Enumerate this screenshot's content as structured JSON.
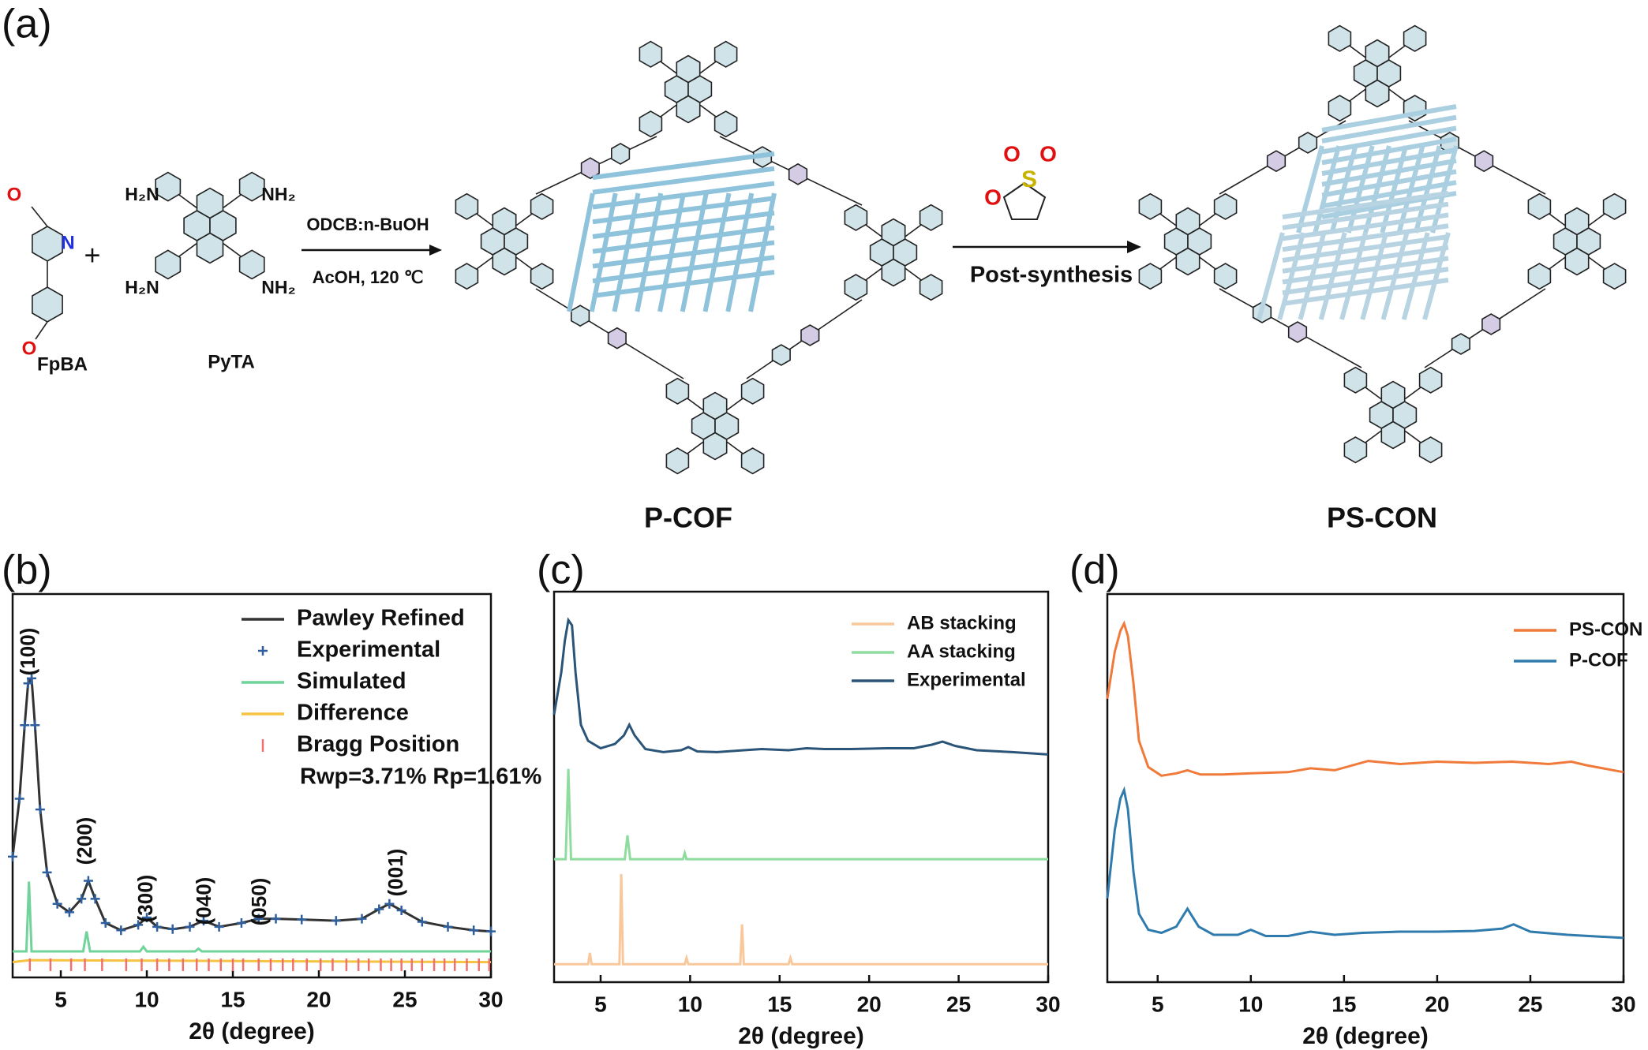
{
  "scheme": {
    "panel_label": "(a)",
    "reactants": [
      "FpBA",
      "PyTA"
    ],
    "plus": "+",
    "fpba_atoms": [
      "O",
      "N",
      "O"
    ],
    "amine_labels": [
      "H₂N",
      "NH₂",
      "H₂N",
      "NH₂"
    ],
    "conditions": [
      "ODCB:n-BuOH",
      "AcOH, 120 ℃"
    ],
    "sultone_atoms": [
      "O",
      "S",
      "O",
      "O"
    ],
    "post": "Post-synthesis",
    "products": [
      "P-COF",
      "PS-CON"
    ]
  },
  "chart_data": [
    {
      "type": "line",
      "panel_label": "(b)",
      "x_label": "2θ (degree)",
      "xlim": [
        2.2,
        30
      ],
      "xticks": [
        5,
        10,
        15,
        20,
        25,
        30
      ],
      "ylim": [
        0,
        100
      ],
      "peak_labels": [
        "(100)",
        "(200)",
        "(300)",
        "(040)",
        "(050)",
        "(001)"
      ],
      "note": "Rwp=3.71% Rp=1.61%",
      "series": [
        {
          "name": "Pawley Refined",
          "color": "#333333",
          "x": [
            2.2,
            2.6,
            2.9,
            3.1,
            3.3,
            3.5,
            3.8,
            4.2,
            4.8,
            5.5,
            6.2,
            6.6,
            7.0,
            7.6,
            8.5,
            9.5,
            10.0,
            10.6,
            11.5,
            12.5,
            13.3,
            14.2,
            15.5,
            16.5,
            17.5,
            19,
            21,
            22.5,
            23.5,
            24.1,
            24.8,
            26,
            27.5,
            29,
            30
          ],
          "values": [
            31.5,
            46.6,
            65.8,
            76.7,
            78,
            65.8,
            43.8,
            27.4,
            19.2,
            17,
            20.5,
            25.2,
            20.5,
            14.2,
            12.3,
            13.7,
            15.6,
            13.2,
            12.6,
            13.2,
            14.8,
            13.2,
            14.2,
            15.3,
            15.3,
            15.1,
            14.8,
            15.3,
            17.8,
            19.2,
            17.5,
            14.5,
            13.2,
            12.3,
            12
          ]
        },
        {
          "name": "Experimental",
          "color": "#2f5f9e",
          "marker": "+",
          "x": [
            2.2,
            2.6,
            2.9,
            3.1,
            3.3,
            3.5,
            3.8,
            4.2,
            4.8,
            5.5,
            6.2,
            6.6,
            7.0,
            7.6,
            8.5,
            9.5,
            10.0,
            10.6,
            11.5,
            12.5,
            13.3,
            14.2,
            15.5,
            16.5,
            17.5,
            19,
            21,
            22.5,
            23.5,
            24.1,
            24.8,
            26,
            27.5,
            29,
            30
          ],
          "values": [
            31.5,
            46.6,
            65.8,
            76.7,
            78,
            65.8,
            43.8,
            27.4,
            19.2,
            17,
            20.5,
            25.2,
            20.5,
            14.2,
            12.3,
            13.7,
            15.6,
            13.2,
            12.6,
            13.2,
            14.8,
            13.2,
            14.2,
            15.3,
            15.3,
            15.1,
            14.8,
            15.3,
            17.8,
            19.2,
            17.5,
            14.5,
            13.2,
            12.3,
            12
          ]
        },
        {
          "name": "Simulated",
          "color": "#6fd39a",
          "x": [
            2.2,
            3.0,
            3.15,
            3.3,
            6.3,
            6.5,
            6.7,
            9.6,
            9.8,
            10.0,
            12.8,
            13.0,
            13.2,
            30
          ],
          "values": [
            6.8,
            6.8,
            25,
            6.8,
            6.8,
            12,
            6.8,
            6.8,
            8,
            6.8,
            6.8,
            7.5,
            6.8,
            6.8
          ]
        },
        {
          "name": "Difference",
          "color": "#f5c242",
          "x": [
            2.2,
            3.2,
            30
          ],
          "values": [
            4,
            4.5,
            4
          ]
        },
        {
          "name": "Bragg Position",
          "color": "#f07070",
          "marker": "|",
          "x": [
            3.2,
            4.4,
            5.6,
            6.4,
            7.4,
            8.8,
            9.7,
            10.6,
            11.3,
            12.1,
            12.9,
            13.6,
            14.3,
            15.0,
            15.6,
            16.5,
            17.2,
            17.9,
            18.5,
            19.3,
            20.1,
            20.8,
            21.6,
            22.3,
            22.9,
            23.6,
            24.2,
            24.8,
            25.4,
            26.0,
            26.7,
            27.3,
            27.9,
            28.6,
            29.3,
            29.9
          ],
          "values": [
            3.3,
            3.3,
            3.3,
            3.3,
            3.3,
            3.3,
            3.3,
            3.3,
            3.3,
            3.3,
            3.3,
            3.3,
            3.3,
            3.3,
            3.3,
            3.3,
            3.3,
            3.3,
            3.3,
            3.3,
            3.3,
            3.3,
            3.3,
            3.3,
            3.3,
            3.3,
            3.3,
            3.3,
            3.3,
            3.3,
            3.3,
            3.3,
            3.3,
            3.3,
            3.3,
            3.3
          ]
        }
      ]
    },
    {
      "type": "line",
      "panel_label": "(c)",
      "x_label": "2θ (degree)",
      "xlim": [
        2.4,
        30
      ],
      "xticks": [
        5,
        10,
        15,
        20,
        25,
        30
      ],
      "ylim": [
        0,
        100
      ],
      "series": [
        {
          "name": "AB stacking",
          "color": "#f8c89c",
          "x": [
            2.4,
            4.3,
            4.4,
            4.5,
            6.05,
            6.15,
            6.25,
            9.7,
            9.8,
            9.9,
            12.8,
            12.9,
            13.0,
            15.5,
            15.6,
            15.7,
            30
          ],
          "values": [
            4.6,
            4.6,
            7.5,
            4.6,
            4.6,
            27.7,
            4.6,
            4.6,
            6.2,
            4.6,
            4.6,
            14.8,
            4.6,
            4.6,
            6.2,
            4.6,
            4.6
          ]
        },
        {
          "name": "AA stacking",
          "color": "#8fdc9f",
          "x": [
            2.4,
            3.05,
            3.2,
            3.35,
            6.35,
            6.5,
            6.65,
            9.6,
            9.7,
            9.8,
            30
          ],
          "values": [
            31.5,
            31.5,
            54.6,
            31.5,
            31.5,
            37.6,
            31.5,
            31.5,
            33.1,
            31.5,
            31.5
          ]
        },
        {
          "name": "Experimental",
          "color": "#2a5578",
          "x": [
            2.4,
            2.8,
            3.0,
            3.2,
            3.4,
            3.6,
            3.9,
            4.3,
            5,
            5.8,
            6.3,
            6.6,
            6.9,
            7.5,
            8.5,
            9.5,
            9.9,
            10.4,
            11.5,
            13,
            14,
            15.5,
            16.5,
            17.5,
            19,
            21,
            22.5,
            23.5,
            24.1,
            24.8,
            26,
            28,
            30
          ],
          "values": [
            68.5,
            79.3,
            87.4,
            92.7,
            91.4,
            79.3,
            65.9,
            61.8,
            59.9,
            61,
            63.2,
            65.9,
            63.2,
            59.7,
            58.9,
            59.4,
            60.2,
            59.1,
            58.9,
            59.4,
            59.7,
            59.4,
            59.9,
            59.7,
            59.7,
            59.9,
            59.9,
            60.8,
            61.6,
            60.5,
            59.4,
            58.9,
            58.3
          ]
        }
      ]
    },
    {
      "type": "line",
      "panel_label": "(d)",
      "x_label": "2θ (degree)",
      "xlim": [
        2.3,
        30
      ],
      "xticks": [
        5,
        10,
        15,
        20,
        25,
        30
      ],
      "ylim": [
        0,
        100
      ],
      "series": [
        {
          "name": "PS-CON",
          "color": "#f07a3a",
          "x": [
            2.3,
            2.7,
            3.0,
            3.2,
            3.4,
            3.7,
            4.0,
            4.5,
            5.2,
            6,
            6.6,
            7.3,
            8.5,
            10,
            12,
            13.2,
            14.5,
            16.3,
            18,
            20,
            22,
            24,
            26,
            27.2,
            28,
            30
          ],
          "values": [
            73,
            85.1,
            90.5,
            92.4,
            89.2,
            77,
            62.2,
            55.4,
            53.2,
            53.8,
            54.6,
            53.5,
            53.5,
            53.8,
            54.1,
            55.1,
            54.6,
            57,
            56.2,
            56.8,
            56.5,
            56.8,
            56.2,
            56.8,
            55.9,
            54.1
          ]
        },
        {
          "name": "P-COF",
          "color": "#2f7bad",
          "x": [
            2.3,
            2.7,
            3.0,
            3.2,
            3.4,
            3.7,
            4.0,
            4.5,
            5.2,
            6,
            6.6,
            7.2,
            8,
            9.3,
            10,
            10.8,
            12,
            13.2,
            14.5,
            16,
            18,
            20,
            22,
            23.5,
            24.1,
            25,
            27,
            30
          ],
          "values": [
            21.6,
            39.2,
            47.3,
            49.5,
            44.6,
            28.4,
            17.6,
            13.5,
            12.7,
            14.3,
            18.9,
            14.3,
            12.2,
            12.2,
            13.5,
            11.9,
            11.9,
            13,
            12.2,
            12.7,
            13,
            13,
            13.2,
            13.8,
            14.9,
            13,
            12.2,
            11.4
          ]
        }
      ]
    }
  ]
}
